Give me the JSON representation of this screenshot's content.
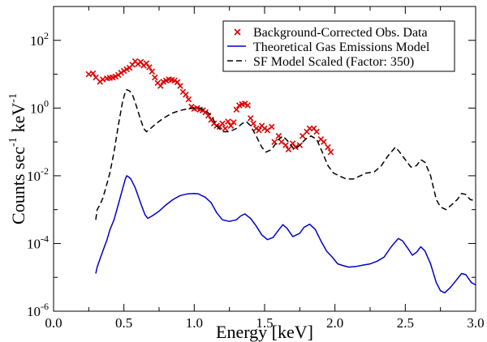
{
  "chart_data": {
    "type": "line",
    "title": "",
    "xlabel": "Energy [keV]",
    "ylabel": {
      "main": "Counts sec",
      "exp1": "-1",
      "unit": "keV",
      "exp2": "-1"
    },
    "xlim": [
      0.0,
      3.0
    ],
    "ylim": [
      1e-06,
      1000
    ],
    "yscale": "log",
    "grid": false,
    "legend_position": "top-right",
    "x_ticks": [
      {
        "value": 0.0,
        "label": "0.0"
      },
      {
        "value": 0.5,
        "label": "0.5"
      },
      {
        "value": 1.0,
        "label": "1.0"
      },
      {
        "value": 1.5,
        "label": "1.5"
      },
      {
        "value": 2.0,
        "label": "2.0"
      },
      {
        "value": 2.5,
        "label": "2.5"
      },
      {
        "value": 3.0,
        "label": "3.0"
      }
    ],
    "y_ticks": [
      {
        "value": 1e-06,
        "base": "10",
        "exp": "-6"
      },
      {
        "value": 0.0001,
        "base": "10",
        "exp": "-4"
      },
      {
        "value": 0.01,
        "base": "10",
        "exp": "-2"
      },
      {
        "value": 1,
        "base": "10",
        "exp": "0"
      },
      {
        "value": 100,
        "base": "10",
        "exp": "2"
      }
    ],
    "series": [
      {
        "name": "Background-Corrected Obs. Data",
        "kind": "scatter",
        "marker": "x",
        "color": "#dd0000",
        "points": [
          [
            0.25,
            10.0
          ],
          [
            0.28,
            10.5
          ],
          [
            0.3,
            8.0
          ],
          [
            0.33,
            6.0
          ],
          [
            0.35,
            7.0
          ],
          [
            0.38,
            7.5
          ],
          [
            0.4,
            7.8
          ],
          [
            0.42,
            8.0
          ],
          [
            0.44,
            8.5
          ],
          [
            0.46,
            9.5
          ],
          [
            0.48,
            11.0
          ],
          [
            0.5,
            12.5
          ],
          [
            0.52,
            14.0
          ],
          [
            0.54,
            15.5
          ],
          [
            0.56,
            19.0
          ],
          [
            0.58,
            24.0
          ],
          [
            0.6,
            20.0
          ],
          [
            0.62,
            23.0
          ],
          [
            0.64,
            18.0
          ],
          [
            0.66,
            21.0
          ],
          [
            0.68,
            16.0
          ],
          [
            0.7,
            12.0
          ],
          [
            0.72,
            8.0
          ],
          [
            0.74,
            5.5
          ],
          [
            0.76,
            4.5
          ],
          [
            0.78,
            6.0
          ],
          [
            0.8,
            6.5
          ],
          [
            0.82,
            7.0
          ],
          [
            0.84,
            6.8
          ],
          [
            0.86,
            6.5
          ],
          [
            0.88,
            5.8
          ],
          [
            0.9,
            4.5
          ],
          [
            0.92,
            3.0
          ],
          [
            0.94,
            2.5
          ],
          [
            0.96,
            1.8
          ],
          [
            0.98,
            1.1
          ],
          [
            1.0,
            0.95
          ],
          [
            1.02,
            1.0
          ],
          [
            1.04,
            0.9
          ],
          [
            1.06,
            0.85
          ],
          [
            1.08,
            0.75
          ],
          [
            1.1,
            0.6
          ],
          [
            1.12,
            0.45
          ],
          [
            1.14,
            0.35
          ],
          [
            1.16,
            0.3
          ],
          [
            1.18,
            0.28
          ],
          [
            1.2,
            0.35
          ],
          [
            1.22,
            0.25
          ],
          [
            1.24,
            0.4
          ],
          [
            1.26,
            0.3
          ],
          [
            1.28,
            0.38
          ],
          [
            1.3,
            0.9
          ],
          [
            1.32,
            1.2
          ],
          [
            1.34,
            1.3
          ],
          [
            1.36,
            1.35
          ],
          [
            1.38,
            1.2
          ],
          [
            1.4,
            0.5
          ],
          [
            1.42,
            0.35
          ],
          [
            1.44,
            0.25
          ],
          [
            1.46,
            0.22
          ],
          [
            1.48,
            0.3
          ],
          [
            1.5,
            0.25
          ],
          [
            1.52,
            0.22
          ],
          [
            1.55,
            0.28
          ],
          [
            1.57,
            0.1
          ],
          [
            1.6,
            0.15
          ],
          [
            1.62,
            0.1
          ],
          [
            1.65,
            0.08
          ],
          [
            1.67,
            0.06
          ],
          [
            1.7,
            0.09
          ],
          [
            1.72,
            0.07
          ],
          [
            1.75,
            0.08
          ],
          [
            1.77,
            0.15
          ],
          [
            1.8,
            0.2
          ],
          [
            1.82,
            0.25
          ],
          [
            1.85,
            0.25
          ],
          [
            1.87,
            0.2
          ],
          [
            1.9,
            0.12
          ],
          [
            1.92,
            0.1
          ],
          [
            1.95,
            0.07
          ],
          [
            1.97,
            0.05
          ]
        ]
      },
      {
        "name": "Theoretical Gas Emissions Model",
        "kind": "line",
        "dash": "solid",
        "color": "#0000cc",
        "points": [
          [
            0.3,
            1.3e-05
          ],
          [
            0.31,
            2e-05
          ],
          [
            0.33,
            3.5e-05
          ],
          [
            0.35,
            6e-05
          ],
          [
            0.38,
            0.00013
          ],
          [
            0.4,
            0.00025
          ],
          [
            0.43,
            0.0005
          ],
          [
            0.46,
            0.0014
          ],
          [
            0.49,
            0.004
          ],
          [
            0.51,
            0.008
          ],
          [
            0.52,
            0.01
          ],
          [
            0.53,
            0.0095
          ],
          [
            0.55,
            0.008
          ],
          [
            0.58,
            0.0045
          ],
          [
            0.62,
            0.0015
          ],
          [
            0.65,
            0.0007
          ],
          [
            0.67,
            0.00055
          ],
          [
            0.7,
            0.00065
          ],
          [
            0.75,
            0.0009
          ],
          [
            0.8,
            0.0014
          ],
          [
            0.85,
            0.002
          ],
          [
            0.9,
            0.0026
          ],
          [
            0.95,
            0.0029
          ],
          [
            1.0,
            0.003
          ],
          [
            1.03,
            0.0029
          ],
          [
            1.08,
            0.0023
          ],
          [
            1.12,
            0.0016
          ],
          [
            1.16,
            0.0008
          ],
          [
            1.2,
            0.0005
          ],
          [
            1.25,
            0.00045
          ],
          [
            1.3,
            0.0005
          ],
          [
            1.33,
            0.00065
          ],
          [
            1.36,
            0.00075
          ],
          [
            1.4,
            0.00055
          ],
          [
            1.44,
            0.00033
          ],
          [
            1.48,
            0.00018
          ],
          [
            1.52,
            0.00013
          ],
          [
            1.56,
            0.00015
          ],
          [
            1.6,
            0.00025
          ],
          [
            1.63,
            0.00036
          ],
          [
            1.66,
            0.00028
          ],
          [
            1.7,
            0.00016
          ],
          [
            1.75,
            0.0002
          ],
          [
            1.78,
            0.0003
          ],
          [
            1.82,
            0.00037
          ],
          [
            1.86,
            0.00026
          ],
          [
            1.9,
            0.00012
          ],
          [
            1.94,
            6e-05
          ],
          [
            1.98,
            4e-05
          ],
          [
            2.02,
            2.5e-05
          ],
          [
            2.06,
            2.2e-05
          ],
          [
            2.1,
            2e-05
          ],
          [
            2.15,
            2.1e-05
          ],
          [
            2.2,
            2.3e-05
          ],
          [
            2.25,
            2.5e-05
          ],
          [
            2.3,
            3e-05
          ],
          [
            2.35,
            4e-05
          ],
          [
            2.4,
            8e-05
          ],
          [
            2.45,
            0.00014
          ],
          [
            2.48,
            0.00012
          ],
          [
            2.52,
            7e-05
          ],
          [
            2.55,
            4.5e-05
          ],
          [
            2.58,
            5.5e-05
          ],
          [
            2.61,
            8e-05
          ],
          [
            2.64,
            6e-05
          ],
          [
            2.68,
            2.5e-05
          ],
          [
            2.72,
            7e-06
          ],
          [
            2.75,
            4e-06
          ],
          [
            2.78,
            3.5e-06
          ],
          [
            2.82,
            5e-06
          ],
          [
            2.86,
            8e-06
          ],
          [
            2.9,
            1.3e-05
          ],
          [
            2.93,
            1.2e-05
          ],
          [
            2.97,
            7e-06
          ],
          [
            3.0,
            6e-06
          ]
        ]
      },
      {
        "name": "SF Model Scaled (Factor: 350)",
        "kind": "line",
        "dash": "dashed",
        "color": "#000000",
        "points": [
          [
            0.3,
            0.0005
          ],
          [
            0.31,
            0.001
          ],
          [
            0.33,
            0.0014
          ],
          [
            0.35,
            0.0022
          ],
          [
            0.38,
            0.006
          ],
          [
            0.4,
            0.012
          ],
          [
            0.43,
            0.05
          ],
          [
            0.46,
            0.3
          ],
          [
            0.49,
            1.5
          ],
          [
            0.51,
            3.0
          ],
          [
            0.52,
            3.5
          ],
          [
            0.54,
            3.2
          ],
          [
            0.56,
            2.5
          ],
          [
            0.58,
            1.5
          ],
          [
            0.61,
            0.6
          ],
          [
            0.64,
            0.25
          ],
          [
            0.66,
            0.2
          ],
          [
            0.69,
            0.25
          ],
          [
            0.73,
            0.35
          ],
          [
            0.78,
            0.5
          ],
          [
            0.84,
            0.7
          ],
          [
            0.9,
            0.85
          ],
          [
            0.95,
            0.95
          ],
          [
            1.0,
            1.0
          ],
          [
            1.04,
            1.0
          ],
          [
            1.08,
            0.85
          ],
          [
            1.12,
            0.6
          ],
          [
            1.16,
            0.3
          ],
          [
            1.2,
            0.2
          ],
          [
            1.25,
            0.2
          ],
          [
            1.3,
            0.25
          ],
          [
            1.34,
            0.35
          ],
          [
            1.37,
            0.4
          ],
          [
            1.4,
            0.3
          ],
          [
            1.44,
            0.15
          ],
          [
            1.48,
            0.07
          ],
          [
            1.51,
            0.05
          ],
          [
            1.55,
            0.06
          ],
          [
            1.6,
            0.12
          ],
          [
            1.63,
            0.15
          ],
          [
            1.67,
            0.1
          ],
          [
            1.71,
            0.06
          ],
          [
            1.75,
            0.08
          ],
          [
            1.79,
            0.12
          ],
          [
            1.83,
            0.15
          ],
          [
            1.87,
            0.12
          ],
          [
            1.91,
            0.05
          ],
          [
            1.95,
            0.02
          ],
          [
            1.99,
            0.012
          ],
          [
            2.03,
            0.01
          ],
          [
            2.08,
            0.008
          ],
          [
            2.13,
            0.008
          ],
          [
            2.18,
            0.01
          ],
          [
            2.22,
            0.012
          ],
          [
            2.28,
            0.013
          ],
          [
            2.33,
            0.02
          ],
          [
            2.38,
            0.04
          ],
          [
            2.43,
            0.07
          ],
          [
            2.46,
            0.05
          ],
          [
            2.5,
            0.03
          ],
          [
            2.54,
            0.018
          ],
          [
            2.58,
            0.02
          ],
          [
            2.61,
            0.03
          ],
          [
            2.64,
            0.025
          ],
          [
            2.68,
            0.01
          ],
          [
            2.72,
            0.002
          ],
          [
            2.75,
            0.0012
          ],
          [
            2.79,
            0.001
          ],
          [
            2.83,
            0.0014
          ],
          [
            2.87,
            0.002
          ],
          [
            2.9,
            0.003
          ],
          [
            2.93,
            0.0028
          ],
          [
            2.96,
            0.002
          ],
          [
            3.0,
            0.0018
          ]
        ]
      }
    ]
  }
}
